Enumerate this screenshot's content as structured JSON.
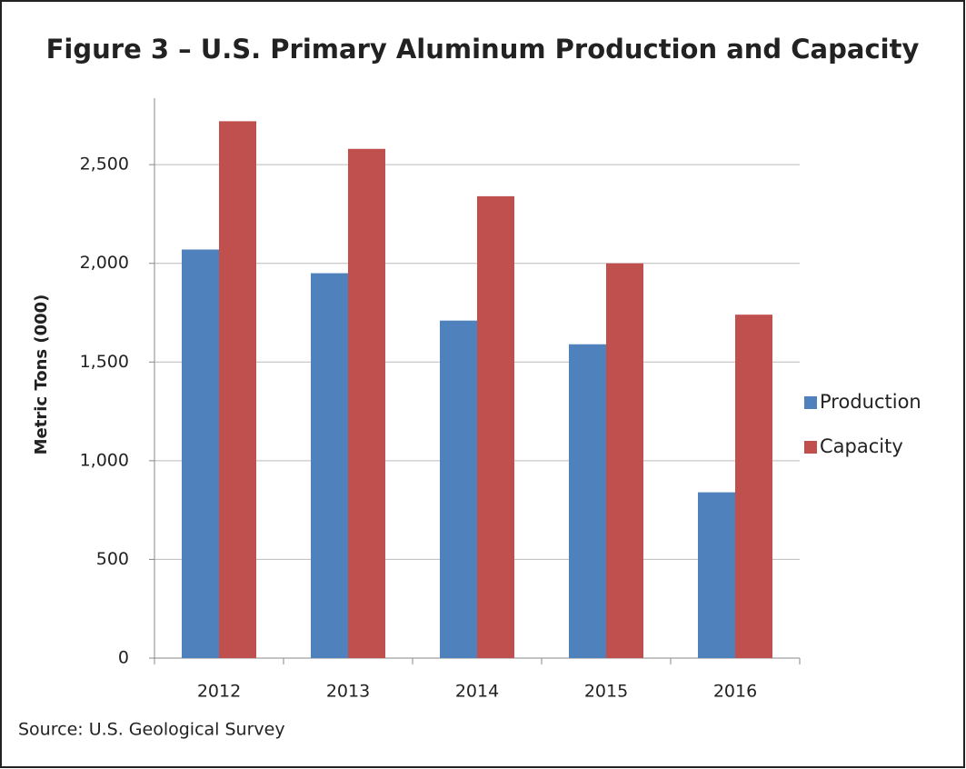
{
  "chart_data": {
    "type": "bar",
    "title": "Figure 3 – U.S. Primary Aluminum Production and Capacity",
    "y_label": "Metric Tons (000)",
    "source": "Source: U.S. Geological Survey",
    "categories": [
      "2012",
      "2013",
      "2014",
      "2015",
      "2016"
    ],
    "series": [
      {
        "name": "Production",
        "color": "#4f81bd",
        "values": [
          2070,
          1950,
          1710,
          1590,
          840
        ]
      },
      {
        "name": "Capacity",
        "color": "#c0504d",
        "values": [
          2720,
          2580,
          2340,
          2000,
          1740
        ]
      }
    ],
    "ylim": [
      0,
      2800
    ],
    "yticks": [
      0,
      500,
      {
        "value": 1000,
        "label": "1,000"
      },
      {
        "value": 1500,
        "label": "1,500"
      },
      {
        "value": 2000,
        "label": "2,000"
      },
      {
        "value": 2500,
        "label": "2,500"
      }
    ],
    "grid": true,
    "legend": "right"
  }
}
